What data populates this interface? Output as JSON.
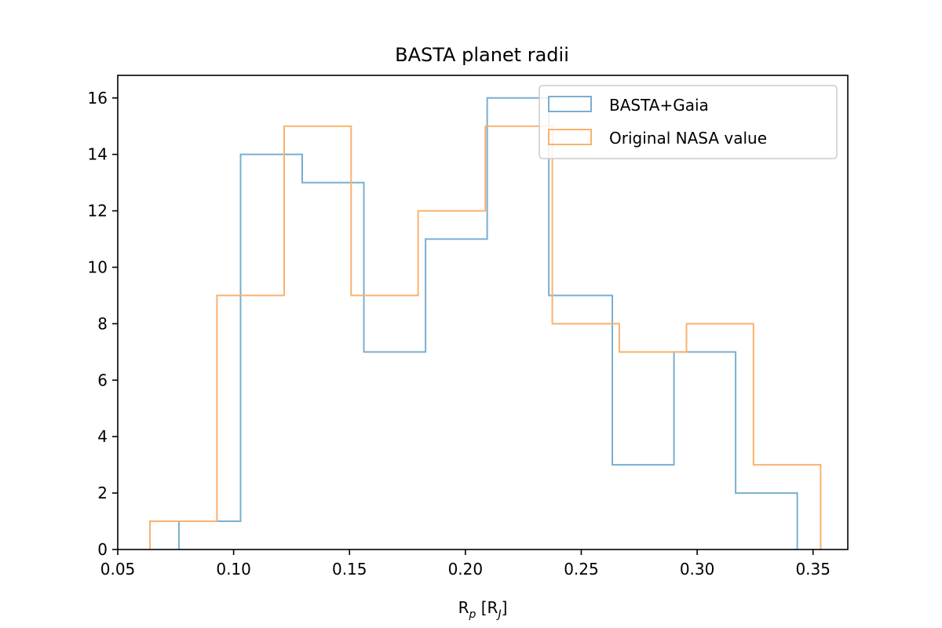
{
  "chart_data": {
    "type": "histogram",
    "title": "BASTA planet radii",
    "xlabel": {
      "base": "R",
      "sub": "p",
      "units": "[R",
      "units_sub": "J",
      "close": "]"
    },
    "xlim": [
      0.05,
      0.365
    ],
    "ylim": [
      0,
      16.8
    ],
    "xticks": [
      0.05,
      0.1,
      0.15,
      0.2,
      0.25,
      0.3,
      0.35
    ],
    "xtick_labels": [
      "0.05",
      "0.10",
      "0.15",
      "0.20",
      "0.25",
      "0.30",
      "0.35"
    ],
    "yticks": [
      0,
      2,
      4,
      6,
      8,
      10,
      12,
      14,
      16
    ],
    "ytick_labels": [
      "0",
      "2",
      "4",
      "6",
      "8",
      "10",
      "12",
      "14",
      "16"
    ],
    "grid": false,
    "legend_position": "top-right",
    "series": [
      {
        "name": "BASTA+Gaia",
        "color": "#7aaed0",
        "bin_edges": [
          0.0764,
          0.103,
          0.1296,
          0.1562,
          0.1828,
          0.2094,
          0.236,
          0.2634,
          0.29,
          0.3166,
          0.3432
        ],
        "counts": [
          1,
          14,
          13,
          7,
          11,
          16,
          9,
          3,
          7,
          2
        ]
      },
      {
        "name": "Original NASA value",
        "color": "#f9b26e",
        "bin_edges": [
          0.0639,
          0.0928,
          0.1218,
          0.1507,
          0.1796,
          0.2086,
          0.2375,
          0.2664,
          0.2954,
          0.3243,
          0.3533
        ],
        "counts": [
          1,
          9,
          15,
          9,
          12,
          15,
          8,
          7,
          8,
          3
        ]
      }
    ]
  }
}
